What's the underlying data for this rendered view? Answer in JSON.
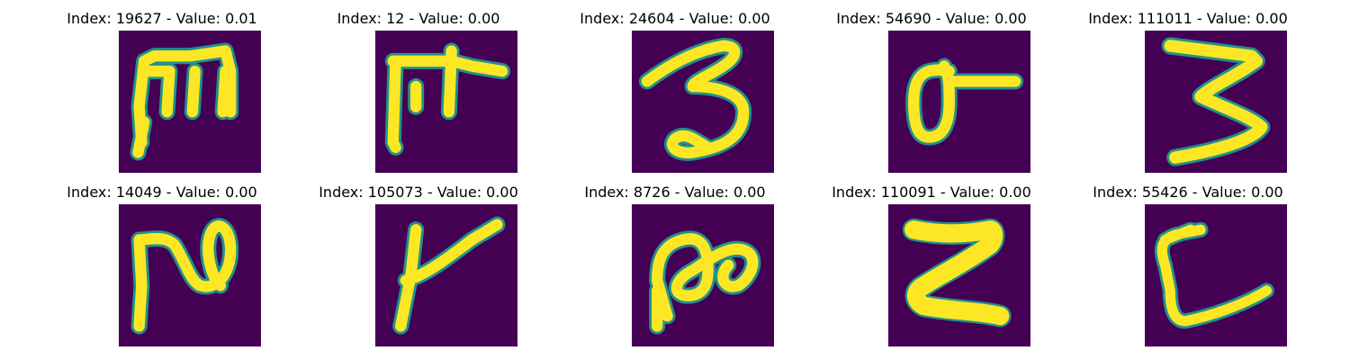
{
  "panels": [
    {
      "title": "Index: 19627 - Value: 0.01",
      "glyph": "m-like"
    },
    {
      "title": "Index: 12 - Value: 0.00",
      "glyph": "pi-like"
    },
    {
      "title": "Index: 24604 - Value: 0.00",
      "glyph": "three"
    },
    {
      "title": "Index: 54690 - Value: 0.00",
      "glyph": "sigma-like"
    },
    {
      "title": "Index: 111011 - Value: 0.00",
      "glyph": "three-block"
    },
    {
      "title": "Index: 14049 - Value: 0.00",
      "glyph": "loop-n"
    },
    {
      "title": "Index: 105073 - Value: 0.00",
      "glyph": "check-like"
    },
    {
      "title": "Index: 8726 - Value: 0.00",
      "glyph": "double-loop"
    },
    {
      "title": "Index: 110091 - Value: 0.00",
      "glyph": "z-block"
    },
    {
      "title": "Index: 55426 - Value: 0.00",
      "glyph": "l-like"
    }
  ],
  "colors": {
    "background": "#440154",
    "edge": "#21918c",
    "stroke": "#fde725"
  }
}
